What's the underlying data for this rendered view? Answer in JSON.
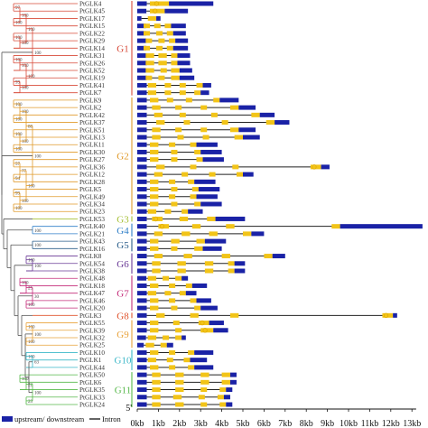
{
  "colors": {
    "utr": "#1a22a6",
    "exon": "#f2c418",
    "intron": "#222222",
    "G1": "#d84b3a",
    "G2": "#e09a2a",
    "G3": "#a8c23a",
    "G4": "#2f7fc8",
    "G5": "#2a5d8a",
    "G6": "#6a3a96",
    "G7": "#c42d7a",
    "G8": "#e0542e",
    "G9": "#e8a23a",
    "G10": "#3ab7c8",
    "G11": "#56b84a"
  },
  "genes": [
    "PtGLK4",
    "PtGLK45",
    "PtGLK17",
    "PtGLK15",
    "PtGLK22",
    "PtGLK29",
    "PtGLK14",
    "PtGLK31",
    "PtGLK26",
    "PtGLK52",
    "PtGLK19",
    "PtGLK41",
    "PtGLK7",
    "PtGLK9",
    "PtGLK2",
    "PtGLK42",
    "PtGLK37",
    "PtGLK51",
    "PtGLK13",
    "PtGLK11",
    "PtGLK30",
    "PtGLK27",
    "PtGLK36",
    "PtGLK12",
    "PtGLK28",
    "PtGLK5",
    "PtGLK49",
    "PtGLK34",
    "PtGLK23",
    "PtGLK53",
    "PtGLK40",
    "PtGLK21",
    "PtGLK43",
    "PtGLK16",
    "PtGLK8",
    "PtGLK54",
    "PtGLK38",
    "PtGLK48",
    "PtGLK18",
    "PtGLK47",
    "PtGLK46",
    "PtGLK20",
    "PtGLK3",
    "PtGLK55",
    "PtGLK39",
    "PtGLK32",
    "PtGLK25",
    "PtGLK10",
    "PtGLK1",
    "PtGLK44",
    "PtGLK50",
    "PtGLK6",
    "PtGLK35",
    "PtGLK33",
    "PtGLK24"
  ],
  "groups": [
    {
      "label": "G1",
      "first": 0,
      "last": 12
    },
    {
      "label": "G2",
      "first": 13,
      "last": 28
    },
    {
      "label": "G3",
      "first": 29,
      "last": 29
    },
    {
      "label": "G4",
      "first": 30,
      "last": 31
    },
    {
      "label": "G5",
      "first": 32,
      "last": 33
    },
    {
      "label": "G6",
      "first": 34,
      "last": 36
    },
    {
      "label": "G7",
      "first": 37,
      "last": 41
    },
    {
      "label": "G8",
      "first": 42,
      "last": 42
    },
    {
      "label": "G9",
      "first": 43,
      "last": 46
    },
    {
      "label": "G10",
      "first": 47,
      "last": 49
    },
    {
      "label": "G11",
      "first": 50,
      "last": 54
    }
  ],
  "bootstrap_values": [
    "97",
    "100",
    "100",
    "100",
    "100",
    "100",
    "100",
    "100",
    "99",
    "100",
    "100",
    "100",
    "100",
    "100",
    "100",
    "100",
    "100",
    "100",
    "88",
    "57",
    "94",
    "77",
    "99",
    "100",
    "100",
    "100",
    "100",
    "100",
    "100",
    "100",
    "100",
    "100",
    "25",
    "100",
    "30",
    "100",
    "100",
    "100",
    "100",
    "63",
    "100",
    "22",
    "23",
    "100",
    "100",
    "100",
    "100",
    "100",
    "100",
    "100",
    "98",
    "100",
    "47",
    "100"
  ],
  "gene_structures": [
    {
      "len": 3.6,
      "exons": [
        [
          0.6,
          1.5
        ]
      ]
    },
    {
      "len": 2.4,
      "exons": [
        [
          0.6,
          1.3
        ]
      ]
    },
    {
      "len": 1.1,
      "exons": [
        [
          0.5,
          0.9
        ]
      ]
    },
    {
      "len": 2.3,
      "exons": [
        [
          0.3,
          0.6
        ],
        [
          0.8,
          1.1
        ],
        [
          1.3,
          1.6
        ]
      ]
    },
    {
      "len": 2.3,
      "exons": [
        [
          0.3,
          0.6
        ],
        [
          0.9,
          1.2
        ],
        [
          1.4,
          1.7
        ]
      ]
    },
    {
      "len": 2.4,
      "exons": [
        [
          0.4,
          0.7
        ],
        [
          1.0,
          1.3
        ],
        [
          1.5,
          1.8
        ]
      ]
    },
    {
      "len": 2.4,
      "exons": [
        [
          0.3,
          0.6
        ],
        [
          0.9,
          1.2
        ],
        [
          1.4,
          1.7
        ]
      ]
    },
    {
      "len": 2.5,
      "exons": [
        [
          0.4,
          0.8
        ],
        [
          1.0,
          1.4
        ],
        [
          1.6,
          1.9
        ]
      ]
    },
    {
      "len": 2.5,
      "exons": [
        [
          0.4,
          0.8
        ],
        [
          1.0,
          1.4
        ],
        [
          1.6,
          1.9
        ]
      ]
    },
    {
      "len": 2.6,
      "exons": [
        [
          0.4,
          0.8
        ],
        [
          1.1,
          1.4
        ],
        [
          1.6,
          2.0
        ]
      ]
    },
    {
      "len": 2.7,
      "exons": [
        [
          0.4,
          0.7
        ],
        [
          1.0,
          1.3
        ],
        [
          1.6,
          2.0
        ]
      ]
    },
    {
      "len": 3.5,
      "exons": [
        [
          0.5,
          0.9
        ],
        [
          1.3,
          1.6
        ],
        [
          2.0,
          2.3
        ],
        [
          2.8,
          3.1
        ]
      ]
    },
    {
      "len": 3.4,
      "exons": [
        [
          0.5,
          0.9
        ],
        [
          1.3,
          1.6
        ],
        [
          2.0,
          2.3
        ],
        [
          2.7,
          3.0
        ]
      ]
    },
    {
      "len": 4.8,
      "exons": [
        [
          0.6,
          1.0
        ],
        [
          1.4,
          1.7
        ],
        [
          2.3,
          2.6
        ],
        [
          3.6,
          3.9
        ]
      ]
    },
    {
      "len": 5.6,
      "exons": [
        [
          0.7,
          1.1
        ],
        [
          1.8,
          2.1
        ],
        [
          3.0,
          3.3
        ],
        [
          4.4,
          4.8
        ]
      ]
    },
    {
      "len": 6.5,
      "exons": [
        [
          0.8,
          1.2
        ],
        [
          2.0,
          2.3
        ],
        [
          3.5,
          3.8
        ],
        [
          5.4,
          5.8
        ]
      ]
    },
    {
      "len": 7.2,
      "exons": [
        [
          0.9,
          1.3
        ],
        [
          2.2,
          2.5
        ],
        [
          4.0,
          4.3
        ],
        [
          6.1,
          6.5
        ]
      ]
    },
    {
      "len": 5.6,
      "exons": [
        [
          0.7,
          1.1
        ],
        [
          1.8,
          2.1
        ],
        [
          3.0,
          3.3
        ],
        [
          4.4,
          4.8
        ]
      ]
    },
    {
      "len": 5.8,
      "exons": [
        [
          0.7,
          1.1
        ],
        [
          1.9,
          2.2
        ],
        [
          3.1,
          3.4
        ],
        [
          4.6,
          5.0
        ]
      ]
    },
    {
      "len": 3.8,
      "exons": [
        [
          0.6,
          1.0
        ],
        [
          1.5,
          1.8
        ],
        [
          2.5,
          2.8
        ]
      ]
    },
    {
      "len": 4.0,
      "exons": [
        [
          0.6,
          1.0
        ],
        [
          1.6,
          1.9
        ],
        [
          2.7,
          3.0
        ]
      ]
    },
    {
      "len": 4.1,
      "exons": [
        [
          0.6,
          1.0
        ],
        [
          1.6,
          1.9
        ],
        [
          2.8,
          3.1
        ]
      ]
    },
    {
      "len": 9.1,
      "exons": [
        [
          0.9,
          1.3
        ],
        [
          2.5,
          2.8
        ],
        [
          4.5,
          4.8
        ],
        [
          8.2,
          8.7
        ]
      ]
    },
    {
      "len": 5.5,
      "exons": [
        [
          0.8,
          1.2
        ],
        [
          2.1,
          2.4
        ],
        [
          3.4,
          3.7
        ],
        [
          4.7,
          5.0
        ]
      ]
    },
    {
      "len": 3.7,
      "exons": [
        [
          0.6,
          1.0
        ],
        [
          1.5,
          1.8
        ],
        [
          2.4,
          2.7
        ]
      ]
    },
    {
      "len": 3.9,
      "exons": [
        [
          0.6,
          1.0
        ],
        [
          1.6,
          1.9
        ],
        [
          2.6,
          2.9
        ]
      ]
    },
    {
      "len": 3.8,
      "exons": [
        [
          0.6,
          1.0
        ],
        [
          1.5,
          1.8
        ],
        [
          2.5,
          2.8
        ]
      ]
    },
    {
      "len": 4.0,
      "exons": [
        [
          0.6,
          1.0
        ],
        [
          1.6,
          1.9
        ],
        [
          2.7,
          3.0
        ]
      ]
    },
    {
      "len": 3.1,
      "exons": [
        [
          0.5,
          0.9
        ],
        [
          1.3,
          1.6
        ],
        [
          2.1,
          2.4
        ]
      ]
    },
    {
      "len": 5.1,
      "exons": [
        [
          0.7,
          1.2
        ],
        [
          2.0,
          2.4
        ],
        [
          3.3,
          3.7
        ]
      ]
    },
    {
      "len": 13.5,
      "exons": [
        [
          1.0,
          1.5
        ],
        [
          2.6,
          3.0
        ],
        [
          4.2,
          4.6
        ],
        [
          9.2,
          9.6
        ]
      ]
    },
    {
      "len": 6.0,
      "exons": [
        [
          0.8,
          1.2
        ],
        [
          2.1,
          2.5
        ],
        [
          3.4,
          3.8
        ],
        [
          5.0,
          5.4
        ]
      ]
    },
    {
      "len": 4.2,
      "exons": [
        [
          0.6,
          1.0
        ],
        [
          1.6,
          2.0
        ],
        [
          2.8,
          3.2
        ]
      ]
    },
    {
      "len": 4.0,
      "exons": [
        [
          0.6,
          1.0
        ],
        [
          1.6,
          1.9
        ],
        [
          2.7,
          3.1
        ]
      ]
    },
    {
      "len": 7.0,
      "exons": [
        [
          0.8,
          1.2
        ],
        [
          2.2,
          2.6
        ],
        [
          4.0,
          4.4
        ],
        [
          6.0,
          6.4
        ]
      ]
    },
    {
      "len": 5.1,
      "exons": [
        [
          0.7,
          1.1
        ],
        [
          1.9,
          2.3
        ],
        [
          3.2,
          3.6
        ],
        [
          4.3,
          4.6
        ]
      ]
    },
    {
      "len": 5.1,
      "exons": [
        [
          0.7,
          1.1
        ],
        [
          1.9,
          2.3
        ],
        [
          3.2,
          3.6
        ],
        [
          4.3,
          4.6
        ]
      ]
    },
    {
      "len": 2.4,
      "exons": [
        [
          0.5,
          0.9
        ],
        [
          1.2,
          1.5
        ],
        [
          1.8,
          2.1
        ]
      ]
    },
    {
      "len": 3.3,
      "exons": [
        [
          0.6,
          1.0
        ],
        [
          1.5,
          1.8
        ],
        [
          2.3,
          2.6
        ]
      ]
    },
    {
      "len": 2.8,
      "exons": [
        [
          0.5,
          0.9
        ],
        [
          1.3,
          1.6
        ],
        [
          2.0,
          2.3
        ]
      ]
    },
    {
      "len": 3.5,
      "exons": [
        [
          0.6,
          1.0
        ],
        [
          1.5,
          1.8
        ],
        [
          2.5,
          2.8
        ]
      ]
    },
    {
      "len": 3.8,
      "exons": [
        [
          0.6,
          1.0
        ],
        [
          1.6,
          1.9
        ],
        [
          2.7,
          3.0
        ]
      ]
    },
    {
      "len": 12.3,
      "exons": [
        [
          0.9,
          1.3
        ],
        [
          2.5,
          2.9
        ],
        [
          4.4,
          4.8
        ],
        [
          11.6,
          12.1
        ]
      ]
    },
    {
      "len": 4.1,
      "exons": [
        [
          0.6,
          1.0
        ],
        [
          1.7,
          2.0
        ],
        [
          2.9,
          3.4
        ]
      ]
    },
    {
      "len": 4.3,
      "exons": [
        [
          0.6,
          1.0
        ],
        [
          1.8,
          2.1
        ],
        [
          3.0,
          3.6
        ]
      ]
    },
    {
      "len": 2.3,
      "exons": [
        [
          0.5,
          0.9
        ],
        [
          1.2,
          1.5
        ],
        [
          1.8,
          2.1
        ]
      ]
    },
    {
      "len": 1.7,
      "exons": [
        [
          0.4,
          0.8
        ],
        [
          1.1,
          1.4
        ]
      ]
    },
    {
      "len": 3.6,
      "exons": [
        [
          0.6,
          1.0
        ],
        [
          1.5,
          1.8
        ],
        [
          2.4,
          2.7
        ]
      ]
    },
    {
      "len": 3.3,
      "exons": [
        [
          0.5,
          0.9
        ],
        [
          1.4,
          1.7
        ],
        [
          2.2,
          2.5
        ]
      ]
    },
    {
      "len": 3.6,
      "exons": [
        [
          0.6,
          1.0
        ],
        [
          1.5,
          1.8
        ],
        [
          2.4,
          2.7
        ]
      ]
    },
    {
      "len": 4.7,
      "exons": [
        [
          0.7,
          1.1
        ],
        [
          1.8,
          2.2
        ],
        [
          3.0,
          3.4
        ],
        [
          4.0,
          4.4
        ]
      ]
    },
    {
      "len": 4.7,
      "exons": [
        [
          0.7,
          1.1
        ],
        [
          1.8,
          2.2
        ],
        [
          3.0,
          3.4
        ],
        [
          4.0,
          4.4
        ]
      ]
    },
    {
      "len": 4.5,
      "exons": [
        [
          0.7,
          1.1
        ],
        [
          1.8,
          2.2
        ],
        [
          3.0,
          3.3
        ],
        [
          3.9,
          4.2
        ]
      ]
    },
    {
      "len": 4.4,
      "exons": [
        [
          0.7,
          1.1
        ],
        [
          1.7,
          2.1
        ],
        [
          2.9,
          3.2
        ],
        [
          3.8,
          4.1
        ]
      ]
    },
    {
      "len": 4.5,
      "exons": [
        [
          0.7,
          1.1
        ],
        [
          1.8,
          2.2
        ],
        [
          3.0,
          3.3
        ],
        [
          3.9,
          4.2
        ]
      ]
    }
  ],
  "axis": {
    "ticks": [
      "0kb",
      "1kb",
      "2kb",
      "3kb",
      "4kb",
      "5kb",
      "6kb",
      "7kb",
      "8kb",
      "9kb",
      "10kb",
      "11kb",
      "12kb",
      "13kb"
    ],
    "left_marker": "5'"
  },
  "legend": {
    "utr_label": "upstream/ downstream",
    "intron_label": "Intron"
  }
}
